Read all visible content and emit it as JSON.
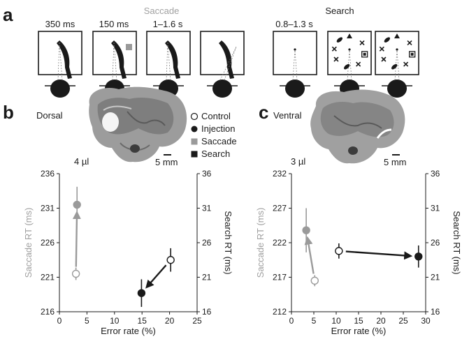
{
  "panel_a": {
    "letter": "a",
    "saccade_title": "Saccade",
    "search_title": "Search",
    "saccade_timings": [
      "350 ms",
      "150 ms",
      "1–1.6 s"
    ],
    "search_timings": [
      "0.8–1.3 s"
    ]
  },
  "panel_b": {
    "letter": "b",
    "region": "Dorsal",
    "volume": "4 µl",
    "scale": "5 mm"
  },
  "panel_c": {
    "letter": "c",
    "region": "Ventral",
    "volume": "3 µl",
    "scale": "5 mm"
  },
  "legend": {
    "control": "Control",
    "injection": "Injection",
    "saccade": "Saccade",
    "search": "Search"
  },
  "colors": {
    "saccade": "#9a9a9a",
    "search": "#1a1a1a"
  },
  "chart_data": [
    {
      "type": "scatter",
      "panel": "b",
      "xlabel": "Error rate (%)",
      "ylabel_left": "Saccade RT (ms)",
      "ylabel_right": "Search RT (ms)",
      "xlim": [
        0,
        25
      ],
      "ylim_left": [
        216,
        236
      ],
      "ylim_right": [
        16,
        36
      ],
      "xticks": [
        0,
        5,
        10,
        15,
        20,
        25
      ],
      "yticks_left": [
        216,
        221,
        226,
        231,
        236
      ],
      "yticks_right": [
        16,
        21,
        26,
        31,
        36
      ],
      "series": [
        {
          "name": "Saccade",
          "axis": "left",
          "points": [
            {
              "condition": "Control",
              "x": 3.0,
              "y": 221.5,
              "err": 0.9
            },
            {
              "condition": "Injection",
              "x": 3.2,
              "y": 231.5,
              "err": 2.6
            }
          ]
        },
        {
          "name": "Search",
          "axis": "right",
          "points": [
            {
              "condition": "Control",
              "x": 20.2,
              "y": 23.5,
              "err": 1.7
            },
            {
              "condition": "Injection",
              "x": 14.9,
              "y": 18.7,
              "err": 2.0
            }
          ]
        }
      ]
    },
    {
      "type": "scatter",
      "panel": "c",
      "xlabel": "Error rate (%)",
      "ylabel_left": "Saccade RT (ms)",
      "ylabel_right": "Search RT (ms)",
      "xlim": [
        0,
        30
      ],
      "ylim_left": [
        212,
        232
      ],
      "ylim_right": [
        16,
        36
      ],
      "xticks": [
        0,
        5,
        10,
        15,
        20,
        25,
        30
      ],
      "yticks_left": [
        212,
        217,
        222,
        227,
        232
      ],
      "yticks_right": [
        16,
        21,
        26,
        31,
        36
      ],
      "series": [
        {
          "name": "Saccade",
          "axis": "left",
          "points": [
            {
              "condition": "Control",
              "x": 5.2,
              "y": 216.5,
              "err": 0.8
            },
            {
              "condition": "Injection",
              "x": 3.3,
              "y": 223.8,
              "err": 3.2
            }
          ]
        },
        {
          "name": "Search",
          "axis": "right",
          "points": [
            {
              "condition": "Control",
              "x": 10.6,
              "y": 24.8,
              "err": 1.1
            },
            {
              "condition": "Injection",
              "x": 28.4,
              "y": 24.0,
              "err": 1.6
            }
          ]
        }
      ]
    }
  ]
}
